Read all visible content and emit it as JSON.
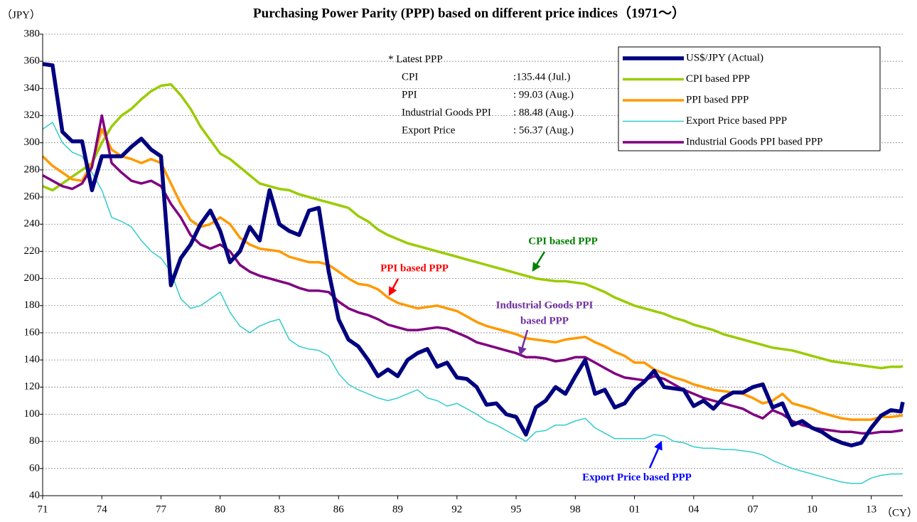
{
  "chart_data": {
    "type": "line",
    "title": "Purchasing Power Parity (PPP) based on different price indices（1971～）",
    "y_label": "（JPY）",
    "x_label": "（CY）",
    "xlim": [
      1971,
      2014.6
    ],
    "ylim": [
      40,
      380
    ],
    "yticks": [
      40,
      60,
      80,
      100,
      120,
      140,
      160,
      180,
      200,
      220,
      240,
      260,
      280,
      300,
      320,
      340,
      360,
      380
    ],
    "xticks": [
      {
        "value": 1971,
        "label": "71"
      },
      {
        "value": 1974,
        "label": "74"
      },
      {
        "value": 1977,
        "label": "77"
      },
      {
        "value": 1980,
        "label": "80"
      },
      {
        "value": 1983,
        "label": "83"
      },
      {
        "value": 1986,
        "label": "86"
      },
      {
        "value": 1989,
        "label": "89"
      },
      {
        "value": 1992,
        "label": "92"
      },
      {
        "value": 1995,
        "label": "95"
      },
      {
        "value": 1998,
        "label": "98"
      },
      {
        "value": 2001,
        "label": "01"
      },
      {
        "value": 2004,
        "label": "04"
      },
      {
        "value": 2007,
        "label": "07"
      },
      {
        "value": 2010,
        "label": "10"
      },
      {
        "value": 2013,
        "label": "13"
      }
    ],
    "grid": true,
    "legend": "top-right",
    "x": [
      1971,
      1971.5,
      1972,
      1972.5,
      1973,
      1973.5,
      1974,
      1974.5,
      1975,
      1975.5,
      1976,
      1976.5,
      1977,
      1977.5,
      1978,
      1978.5,
      1979,
      1979.5,
      1980,
      1980.5,
      1981,
      1981.5,
      1982,
      1982.5,
      1983,
      1983.5,
      1984,
      1984.5,
      1985,
      1985.5,
      1986,
      1986.5,
      1987,
      1987.5,
      1988,
      1988.5,
      1989,
      1989.5,
      1990,
      1990.5,
      1991,
      1991.5,
      1992,
      1992.5,
      1993,
      1993.5,
      1994,
      1994.5,
      1995,
      1995.5,
      1996,
      1996.5,
      1997,
      1997.5,
      1998,
      1998.5,
      1999,
      1999.5,
      2000,
      2000.5,
      2001,
      2001.5,
      2002,
      2002.5,
      2003,
      2003.5,
      2004,
      2004.5,
      2005,
      2005.5,
      2006,
      2006.5,
      2007,
      2007.5,
      2008,
      2008.5,
      2009,
      2009.5,
      2010,
      2010.5,
      2011,
      2011.5,
      2012,
      2012.5,
      2013,
      2013.5,
      2014,
      2014.5,
      2014.6
    ],
    "series": [
      {
        "name": "Export Price based PPP",
        "color": "#33cccc",
        "width": 1.5,
        "values": [
          310,
          315,
          300,
          293,
          290,
          278,
          265,
          245,
          242,
          238,
          228,
          220,
          215,
          205,
          185,
          178,
          180,
          185,
          190,
          175,
          165,
          160,
          165,
          168,
          170,
          155,
          150,
          148,
          147,
          143,
          130,
          122,
          118,
          115,
          112,
          110,
          112,
          115,
          118,
          112,
          110,
          106,
          108,
          104,
          100,
          95,
          92,
          88,
          84,
          80,
          87,
          88,
          92,
          92,
          95,
          97,
          90,
          86,
          82,
          82,
          82,
          82,
          85,
          84,
          80,
          79,
          76,
          75,
          75,
          74,
          74,
          73,
          72,
          70,
          66,
          63,
          60,
          58,
          56,
          54,
          52,
          50,
          49,
          49,
          53,
          55,
          56,
          56,
          56.37
        ]
      },
      {
        "name": "CPI based PPP",
        "color": "#99cc00",
        "width": 3.5,
        "values": [
          268,
          265,
          270,
          275,
          280,
          285,
          300,
          312,
          320,
          325,
          332,
          338,
          342,
          343,
          335,
          325,
          312,
          302,
          292,
          288,
          282,
          276,
          270,
          268,
          266,
          265,
          262,
          260,
          258,
          256,
          254,
          252,
          246,
          242,
          236,
          232,
          229,
          226,
          224,
          222,
          220,
          218,
          216,
          214,
          212,
          210,
          208,
          206,
          204,
          202,
          200,
          199,
          198,
          198,
          197,
          196,
          193,
          190,
          186,
          183,
          180,
          178,
          176,
          174,
          171,
          169,
          166,
          164,
          162,
          159,
          157,
          155,
          153,
          151,
          149,
          148,
          147,
          145,
          143,
          141,
          139,
          138,
          137,
          136,
          135,
          134,
          135,
          135,
          135.44
        ]
      },
      {
        "name": "PPI based PPP",
        "color": "#ff9900",
        "width": 3.5,
        "values": [
          290,
          283,
          278,
          273,
          272,
          285,
          310,
          295,
          290,
          288,
          285,
          288,
          285,
          270,
          255,
          243,
          238,
          240,
          245,
          240,
          230,
          225,
          222,
          221,
          220,
          216,
          214,
          212,
          212,
          210,
          205,
          200,
          196,
          195,
          192,
          186,
          182,
          180,
          178,
          179,
          180,
          178,
          176,
          172,
          168,
          165,
          163,
          161,
          159,
          156,
          155,
          154,
          153,
          155,
          156,
          157,
          153,
          150,
          146,
          143,
          138,
          138,
          133,
          130,
          127,
          125,
          122,
          120,
          118,
          117,
          116,
          115,
          112,
          108,
          110,
          115,
          108,
          106,
          104,
          101,
          99,
          97,
          96,
          96,
          96,
          98,
          98,
          99,
          99.03
        ]
      },
      {
        "name": "Industrial Goods PPI based PPP",
        "color": "#800080",
        "width": 3.5,
        "values": [
          276,
          272,
          268,
          266,
          270,
          282,
          320,
          285,
          278,
          272,
          270,
          272,
          268,
          255,
          245,
          232,
          225,
          222,
          225,
          220,
          210,
          205,
          202,
          200,
          198,
          196,
          193,
          191,
          191,
          190,
          183,
          178,
          175,
          173,
          170,
          166,
          164,
          162,
          162,
          163,
          164,
          163,
          160,
          157,
          153,
          151,
          149,
          147,
          145,
          142,
          142,
          141,
          139,
          140,
          142,
          142,
          138,
          134,
          130,
          127,
          126,
          125,
          128,
          126,
          122,
          118,
          115,
          112,
          110,
          108,
          106,
          104,
          100,
          97,
          103,
          100,
          95,
          92,
          90,
          89,
          88,
          87,
          87,
          86,
          86,
          87,
          87,
          88,
          88.48
        ]
      },
      {
        "name": "US$/JPY (Actual)",
        "color": "#000080",
        "width": 5.5,
        "values": [
          358,
          357,
          308,
          301,
          301,
          265,
          290,
          290,
          290,
          297,
          303,
          295,
          290,
          195,
          215,
          225,
          240,
          250,
          235,
          212,
          220,
          238,
          228,
          265,
          240,
          235,
          232,
          250,
          252,
          205,
          170,
          155,
          150,
          140,
          128,
          133,
          128,
          140,
          145,
          148,
          135,
          138,
          127,
          126,
          120,
          107,
          108,
          100,
          98,
          85,
          105,
          110,
          120,
          115,
          128,
          140,
          115,
          118,
          105,
          108,
          118,
          124,
          132,
          120,
          119,
          118,
          106,
          110,
          104,
          112,
          116,
          116,
          120,
          122,
          105,
          108,
          92,
          95,
          90,
          87,
          82,
          79,
          77,
          79,
          90,
          99,
          103,
          102,
          109
        ]
      }
    ],
    "legend_order": [
      4,
      1,
      2,
      0,
      3
    ],
    "latest_box": {
      "title": "* Latest PPP",
      "rows": [
        [
          "CPI",
          ":135.44 (Jul.)"
        ],
        [
          "PPI",
          ": 99.03 (Aug.)"
        ],
        [
          "Industrial Goods PPI",
          ": 88.48 (Aug.)"
        ],
        [
          "Export Price",
          ": 56.37 (Aug.)"
        ]
      ]
    },
    "annotations": [
      {
        "lines": [
          "CPI based PPP"
        ],
        "color": "#008000"
      },
      {
        "lines": [
          "PPI based PPP"
        ],
        "color": "#ff0000"
      },
      {
        "lines": [
          "Industrial Goods PPI",
          "based PPP"
        ],
        "color": "#7030a0"
      },
      {
        "lines": [
          "Export Price based PPP"
        ],
        "color": "#0000ff"
      }
    ]
  }
}
